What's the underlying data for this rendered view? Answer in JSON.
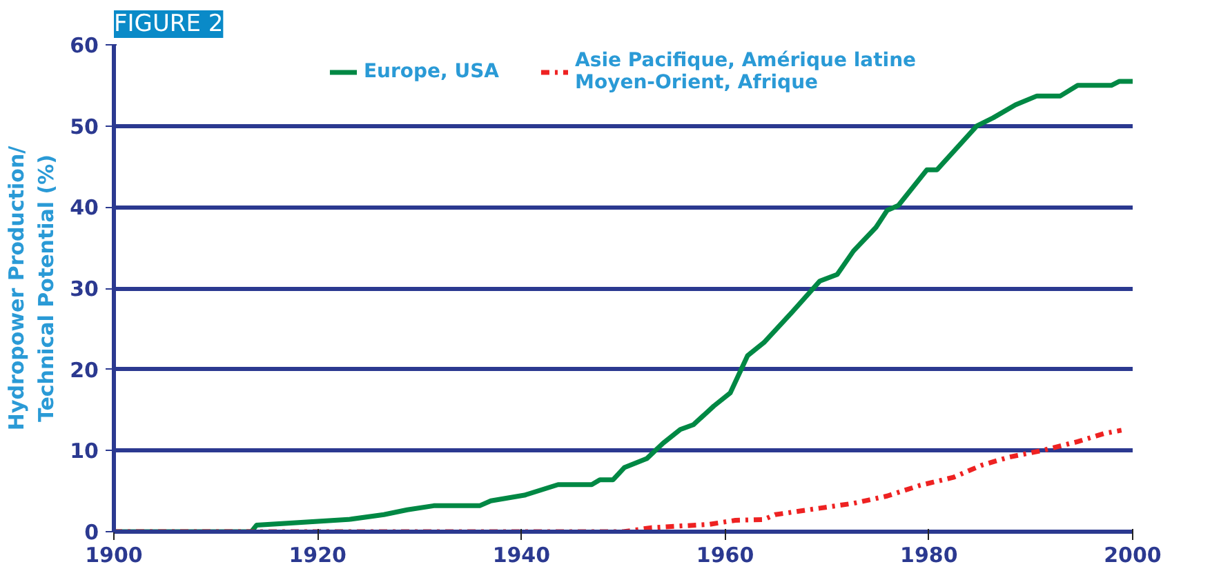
{
  "chart_data": {
    "type": "line",
    "title": "FIGURE 2",
    "ylabel": "Hydropower Production/\nTechnical Potential (%)",
    "xlim": [
      1900,
      2000
    ],
    "ylim": [
      0,
      60
    ],
    "xticks": [
      1900,
      1920,
      1940,
      1960,
      1980,
      2000
    ],
    "yticks": [
      0,
      10,
      20,
      30,
      40,
      50,
      60
    ],
    "grid": "y",
    "legend": "top",
    "series": [
      {
        "name": "Europe, USA",
        "color": "#008844",
        "line_style": "solid",
        "x": [
          1900,
          1913.5,
          1914,
          1923,
          1926.5,
          1928.8,
          1931.4,
          1935.9,
          1937,
          1940.3,
          1943.6,
          1946.9,
          1947.7,
          1949,
          1950.1,
          1952.3,
          1953.9,
          1955.6,
          1956.9,
          1958.9,
          1960.5,
          1962.2,
          1963.8,
          1966.6,
          1969.3,
          1971,
          1972.6,
          1974.8,
          1975.9,
          1977,
          1979.8,
          1980.8,
          1984.7,
          1986.3,
          1988.5,
          1990.6,
          1992.9,
          1994.6,
          1997.9,
          1998.7,
          2000
        ],
        "values": [
          0,
          0,
          0.8,
          1.5,
          2.1,
          2.7,
          3.2,
          3.2,
          3.8,
          4.5,
          5.8,
          5.8,
          6.4,
          6.4,
          7.9,
          9.0,
          10.9,
          12.6,
          13.2,
          15.5,
          17.1,
          21.7,
          23.3,
          27.1,
          30.9,
          31.7,
          34.6,
          37.5,
          39.6,
          40.2,
          44.6,
          44.6,
          50.0,
          51.0,
          52.6,
          53.7,
          53.7,
          55.0,
          55.0,
          55.5,
          55.5
        ]
      },
      {
        "name": "Asie Pacifique, Amérique latine\nMoyen-Orient, Afrique",
        "color": "#ee2222",
        "line_style": "dashed",
        "x": [
          1900,
          1950,
          1952.8,
          1958.4,
          1961,
          1963.8,
          1964.9,
          1969.3,
          1972.6,
          1975.9,
          1979.1,
          1982.4,
          1985.2,
          1987.9,
          1991.1,
          1994.6,
          1997.2,
          1998.9
        ],
        "values": [
          0,
          0,
          0.5,
          0.9,
          1.4,
          1.5,
          2.1,
          2.9,
          3.5,
          4.4,
          5.7,
          6.7,
          8.2,
          9.2,
          10.0,
          11.1,
          12.1,
          12.5
        ]
      }
    ]
  }
}
